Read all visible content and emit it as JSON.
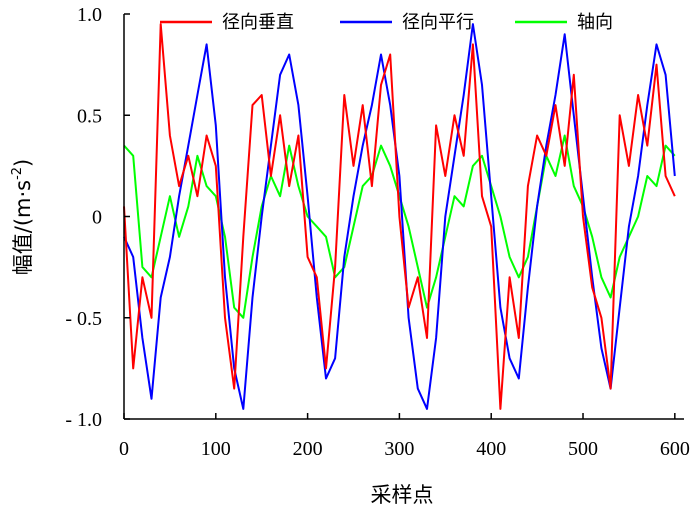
{
  "chart_data": {
    "type": "line",
    "title": "",
    "xlabel": "采样点",
    "ylabel_main": "幅值",
    "ylabel_unit_open": "/(m·s",
    "ylabel_unit_exp": "-2",
    "ylabel_unit_close": ")",
    "xlim": [
      0,
      610
    ],
    "ylim": [
      -1.0,
      1.0
    ],
    "xticks": [
      0,
      100,
      200,
      300,
      400,
      500,
      600
    ],
    "xtick_labels": [
      "0",
      "100",
      "200",
      "300",
      "400",
      "500",
      "600"
    ],
    "yticks": [
      1.0,
      0.5,
      0,
      -0.5,
      -1.0
    ],
    "ytick_labels": [
      "1.0",
      "0.5",
      "0",
      "- 0.5",
      "- 1.0"
    ],
    "legend_position": "top",
    "series": [
      {
        "name": "径向垂直",
        "color": "#ff0000",
        "x": [
          0,
          10,
          20,
          30,
          40,
          50,
          60,
          70,
          80,
          90,
          100,
          110,
          120,
          130,
          140,
          150,
          160,
          170,
          180,
          190,
          200,
          210,
          220,
          230,
          240,
          250,
          260,
          270,
          280,
          290,
          300,
          310,
          320,
          330,
          340,
          350,
          360,
          370,
          380,
          390,
          400,
          410,
          420,
          430,
          440,
          450,
          460,
          470,
          480,
          490,
          500,
          510,
          520,
          530,
          540,
          550,
          560,
          570,
          580,
          590,
          600
        ],
        "values": [
          0.05,
          -0.75,
          -0.3,
          -0.5,
          0.95,
          0.4,
          0.15,
          0.3,
          0.1,
          0.4,
          0.25,
          -0.5,
          -0.85,
          -0.1,
          0.55,
          0.6,
          0.2,
          0.5,
          0.15,
          0.4,
          -0.2,
          -0.3,
          -0.75,
          -0.25,
          0.6,
          0.25,
          0.55,
          0.15,
          0.65,
          0.8,
          0.0,
          -0.45,
          -0.3,
          -0.6,
          0.45,
          0.2,
          0.5,
          0.3,
          0.85,
          0.1,
          -0.05,
          -0.95,
          -0.3,
          -0.6,
          0.15,
          0.4,
          0.3,
          0.55,
          0.25,
          0.7,
          0.0,
          -0.35,
          -0.5,
          -0.85,
          0.5,
          0.25,
          0.6,
          0.35,
          0.75,
          0.2,
          0.1
        ]
      },
      {
        "name": "径向平行",
        "color": "#0000ff",
        "x": [
          0,
          10,
          20,
          30,
          40,
          50,
          60,
          70,
          80,
          90,
          100,
          110,
          120,
          130,
          140,
          150,
          160,
          170,
          180,
          190,
          200,
          210,
          220,
          230,
          240,
          250,
          260,
          270,
          280,
          290,
          300,
          310,
          320,
          330,
          340,
          350,
          360,
          370,
          380,
          390,
          400,
          410,
          420,
          430,
          440,
          450,
          460,
          470,
          480,
          490,
          500,
          510,
          520,
          530,
          540,
          550,
          560,
          570,
          580,
          590,
          600
        ],
        "values": [
          -0.1,
          -0.2,
          -0.6,
          -0.9,
          -0.4,
          -0.2,
          0.1,
          0.35,
          0.6,
          0.85,
          0.45,
          -0.3,
          -0.75,
          -0.95,
          -0.4,
          0.0,
          0.35,
          0.7,
          0.8,
          0.55,
          0.1,
          -0.4,
          -0.8,
          -0.7,
          -0.2,
          0.1,
          0.35,
          0.55,
          0.8,
          0.55,
          0.2,
          -0.5,
          -0.85,
          -0.95,
          -0.6,
          0.0,
          0.3,
          0.6,
          0.95,
          0.65,
          0.1,
          -0.45,
          -0.7,
          -0.8,
          -0.35,
          0.05,
          0.35,
          0.6,
          0.9,
          0.5,
          0.1,
          -0.3,
          -0.65,
          -0.85,
          -0.45,
          -0.05,
          0.2,
          0.55,
          0.85,
          0.7,
          0.2
        ]
      },
      {
        "name": "轴向",
        "color": "#00ff00",
        "x": [
          0,
          10,
          20,
          30,
          40,
          50,
          60,
          70,
          80,
          90,
          100,
          110,
          120,
          130,
          140,
          150,
          160,
          170,
          180,
          190,
          200,
          210,
          220,
          230,
          240,
          250,
          260,
          270,
          280,
          290,
          300,
          310,
          320,
          330,
          340,
          350,
          360,
          370,
          380,
          390,
          400,
          410,
          420,
          430,
          440,
          450,
          460,
          470,
          480,
          490,
          500,
          510,
          520,
          530,
          540,
          550,
          560,
          570,
          580,
          590,
          600
        ],
        "values": [
          0.35,
          0.3,
          -0.25,
          -0.3,
          -0.1,
          0.1,
          -0.1,
          0.05,
          0.3,
          0.15,
          0.1,
          -0.1,
          -0.45,
          -0.5,
          -0.2,
          0.05,
          0.2,
          0.1,
          0.35,
          0.15,
          0.0,
          -0.05,
          -0.1,
          -0.3,
          -0.25,
          -0.05,
          0.15,
          0.2,
          0.35,
          0.25,
          0.1,
          -0.05,
          -0.25,
          -0.45,
          -0.3,
          -0.1,
          0.1,
          0.05,
          0.25,
          0.3,
          0.15,
          0.0,
          -0.2,
          -0.3,
          -0.2,
          0.05,
          0.3,
          0.2,
          0.4,
          0.15,
          0.05,
          -0.1,
          -0.3,
          -0.4,
          -0.2,
          -0.1,
          0.0,
          0.2,
          0.15,
          0.35,
          0.3
        ]
      }
    ]
  }
}
